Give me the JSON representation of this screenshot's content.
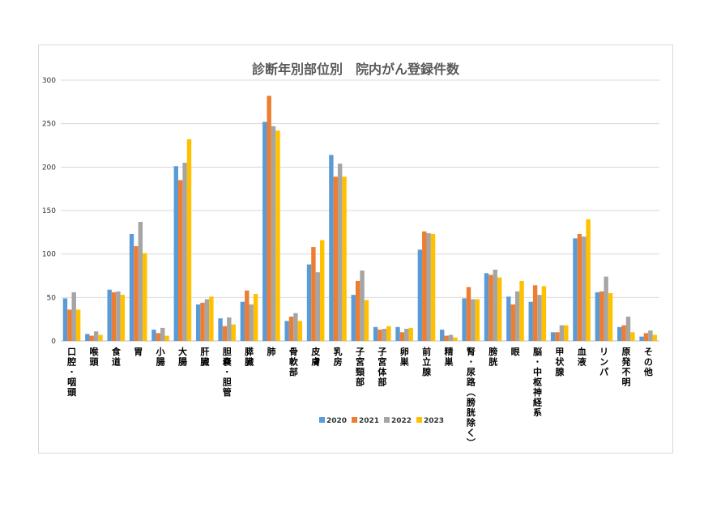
{
  "chart_data": {
    "type": "bar",
    "title": "診断年別部位別　院内がん登録件数",
    "xlabel": "",
    "ylabel": "",
    "ylim": [
      0,
      300
    ],
    "yticks": [
      0,
      50,
      100,
      150,
      200,
      250,
      300
    ],
    "grid": true,
    "legend_position": "bottom",
    "categories": [
      "口腔・咽頭",
      "喉頭",
      "食道",
      "胃",
      "小腸",
      "大腸",
      "肝臓",
      "胆嚢・胆管",
      "膵臓",
      "肺",
      "骨軟部",
      "皮膚",
      "乳房",
      "子宮頸部",
      "子宮体部",
      "卵巣",
      "前立腺",
      "精巣",
      "腎・尿路（膀胱除く）",
      "膀胱",
      "眼",
      "脳・中枢神経系",
      "甲状腺",
      "血液",
      "リンパ",
      "原発不明",
      "その他"
    ],
    "series": [
      {
        "name": "2020",
        "color": "#5b9bd5",
        "values": [
          49,
          8,
          59,
          123,
          13,
          201,
          42,
          26,
          45,
          252,
          23,
          88,
          214,
          53,
          16,
          16,
          105,
          13,
          49,
          78,
          51,
          45,
          10,
          118,
          56,
          16,
          5
        ]
      },
      {
        "name": "2021",
        "color": "#ed7d31",
        "values": [
          36,
          6,
          56,
          109,
          9,
          185,
          44,
          17,
          58,
          282,
          28,
          108,
          189,
          69,
          13,
          10,
          126,
          6,
          62,
          76,
          42,
          64,
          10,
          123,
          57,
          18,
          9
        ]
      },
      {
        "name": "2022",
        "color": "#a5a5a5",
        "values": [
          56,
          11,
          57,
          137,
          15,
          205,
          48,
          27,
          42,
          247,
          32,
          79,
          204,
          81,
          14,
          14,
          124,
          7,
          48,
          82,
          57,
          53,
          18,
          120,
          74,
          28,
          12
        ]
      },
      {
        "name": "2023",
        "color": "#ffc000",
        "values": [
          36,
          7,
          53,
          101,
          6,
          232,
          51,
          19,
          54,
          242,
          23,
          116,
          189,
          47,
          17,
          15,
          123,
          4,
          48,
          73,
          69,
          63,
          18,
          140,
          55,
          10,
          7
        ]
      }
    ]
  }
}
